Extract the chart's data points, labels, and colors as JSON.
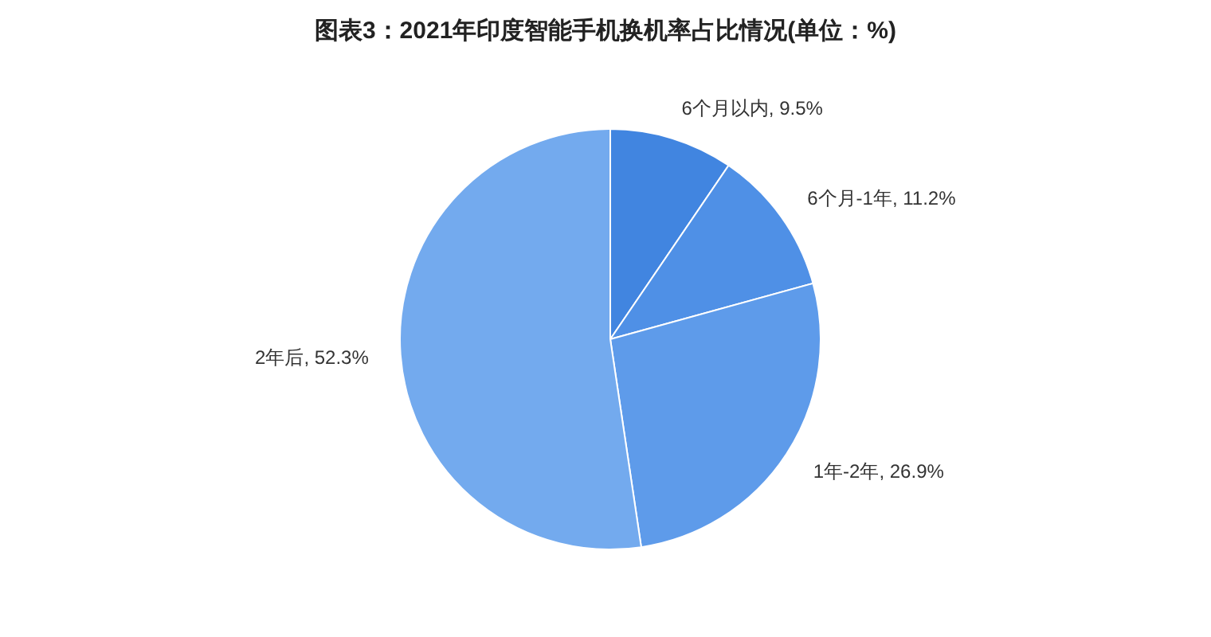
{
  "chart_data": {
    "type": "pie",
    "title": "图表3：2021年印度智能手机换机率占比情况(单位：%)",
    "categories": [
      "6个月以内",
      "6个月-1年",
      "1年-2年",
      "2年后"
    ],
    "values": [
      9.5,
      11.2,
      26.9,
      52.3
    ],
    "colors": [
      "#4185e0",
      "#4f90e6",
      "#5e9bea",
      "#73aaee"
    ],
    "value_labels": [
      "9.5%",
      "11.2%",
      "26.9%",
      "52.3%"
    ]
  }
}
